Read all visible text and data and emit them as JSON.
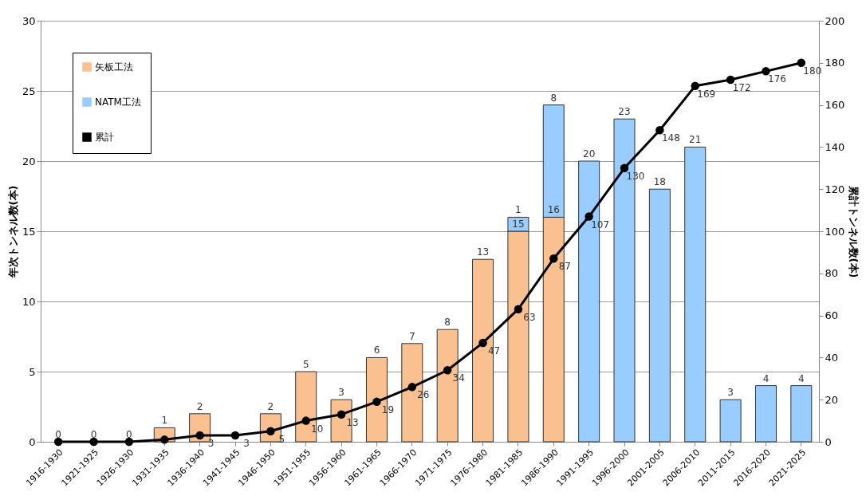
{
  "chart_data": {
    "type": "bar",
    "stacked": true,
    "ylabel": "年次トンネル数(本)",
    "y2label": "累計トンネル数(本)",
    "categories": [
      "1916-1930",
      "1921-1925",
      "1926-1930",
      "1931-1935",
      "1936-1940",
      "1941-1945",
      "1946-1950",
      "1951-1955",
      "1956-1960",
      "1961-1965",
      "1966-1970",
      "1971-1975",
      "1976-1980",
      "1981-1985",
      "1986-1990",
      "1991-1995",
      "1996-2000",
      "2001-2005",
      "2006-2010",
      "2011-2015",
      "2016-2020",
      "2021-2025"
    ],
    "series": [
      {
        "name": "矢板工法",
        "color": "#fac090",
        "values": [
          0,
          0,
          0,
          1,
          2,
          0,
          2,
          5,
          3,
          6,
          7,
          8,
          13,
          15,
          16,
          null,
          null,
          null,
          null,
          null,
          null,
          null
        ],
        "value_labels": [
          "0",
          "0",
          "0",
          "1",
          "2",
          null,
          "2",
          "5",
          "3",
          "6",
          "7",
          "8",
          "13",
          "15",
          "16",
          null,
          null,
          null,
          null,
          null,
          null,
          null
        ]
      },
      {
        "name": "NATM工法",
        "color": "#99ccff",
        "values": [
          null,
          null,
          null,
          null,
          null,
          null,
          null,
          null,
          null,
          null,
          null,
          null,
          null,
          1,
          8,
          20,
          23,
          18,
          21,
          3,
          4,
          4
        ],
        "value_labels": [
          null,
          null,
          null,
          null,
          null,
          null,
          null,
          null,
          null,
          null,
          null,
          null,
          null,
          "1",
          "8",
          "20",
          "23",
          "18",
          "21",
          "3",
          "4",
          "4"
        ]
      },
      {
        "name": "累計",
        "type": "line",
        "axis": "y2",
        "color": "#000000",
        "marker": "circle",
        "line_style": "solid",
        "values": [
          0,
          0,
          0,
          1,
          3,
          3,
          5,
          10,
          13,
          19,
          26,
          34,
          47,
          63,
          87,
          107,
          130,
          148,
          169,
          172,
          176,
          180
        ],
        "value_labels": [
          null,
          null,
          null,
          null,
          "3",
          "3",
          "5",
          "10",
          "13",
          "19",
          "26",
          "34",
          "47",
          "63",
          "87",
          "107",
          "130",
          "148",
          "169",
          "172",
          "176",
          "180"
        ]
      }
    ],
    "ylim": [
      0,
      30
    ],
    "yticks": [
      0,
      5,
      10,
      15,
      20,
      25,
      30
    ],
    "y2lim": [
      0,
      200
    ],
    "y2ticks": [
      0,
      20,
      40,
      60,
      80,
      100,
      120,
      140,
      160,
      180,
      200
    ],
    "grid": "y",
    "legend": "top left"
  }
}
